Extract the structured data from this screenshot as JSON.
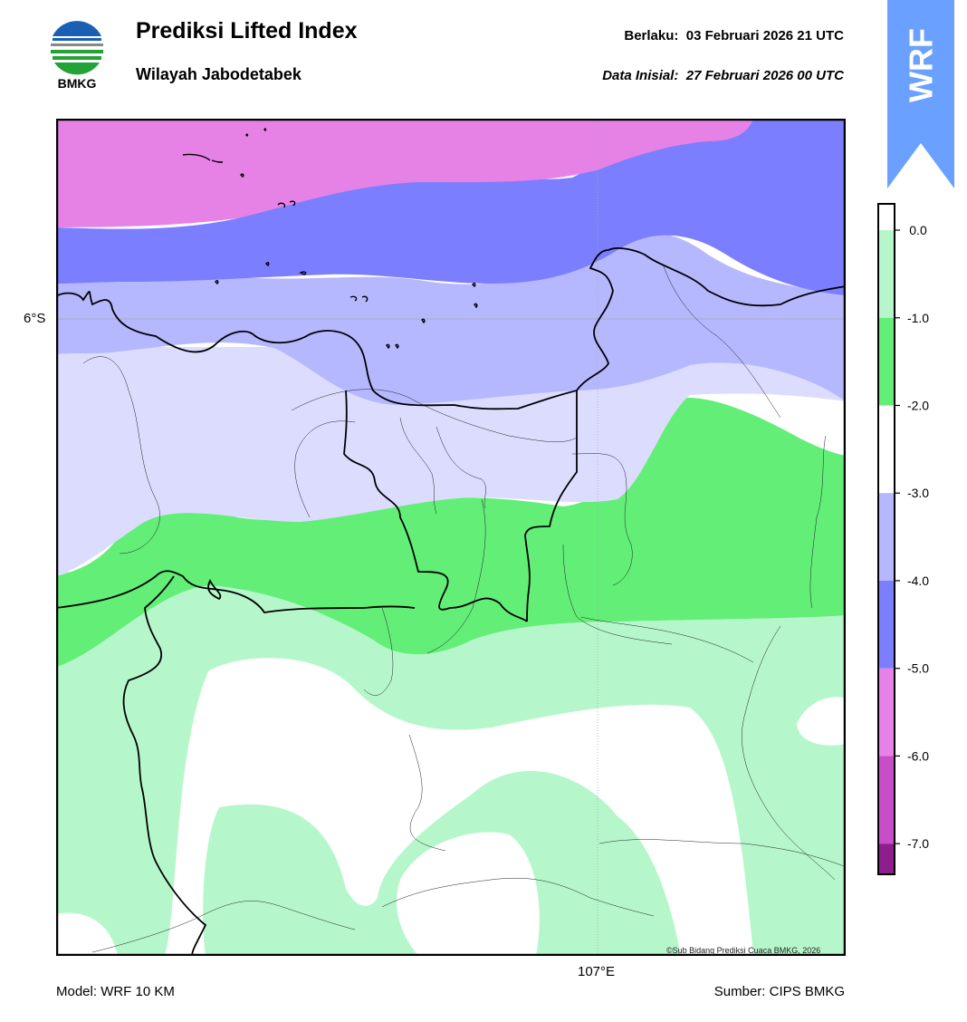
{
  "header": {
    "logo_text": "BMKG",
    "title": "Prediksi Lifted Index",
    "subtitle": "Wilayah Jabodetabek",
    "valid_label": "Berlaku:",
    "valid_value": "03 Februari 2026 21 UTC",
    "init_label": "Data Inisial:",
    "init_value": "27 Februari 2026 00 UTC",
    "model_badge": "WRF",
    "badge_color": "#6aa0ff"
  },
  "map": {
    "lat_label": "6°S",
    "lon_label": "107°E",
    "copyright": "©Sub Bidang Prediksi Cuaca BMKG, 2026"
  },
  "legend": {
    "ticks": [
      "0.0",
      "-1.0",
      "-2.0",
      "-3.0",
      "-4.0",
      "-5.0",
      "-6.0",
      "-7.0"
    ],
    "bands": [
      {
        "from": 0.3,
        "to": 0.0,
        "color": "#ffffff"
      },
      {
        "from": 0.0,
        "to": -1.0,
        "color": "#b5f7ca"
      },
      {
        "from": -1.0,
        "to": -2.0,
        "color": "#63ee78"
      },
      {
        "from": -2.0,
        "to": -3.0,
        "color": "#ffffff"
      },
      {
        "from": -3.0,
        "to": -4.0,
        "color": "#b5b8fe"
      },
      {
        "from": -4.0,
        "to": -5.0,
        "color": "#7b7efe"
      },
      {
        "from": -5.0,
        "to": -6.0,
        "color": "#e681e6"
      },
      {
        "from": -6.0,
        "to": -7.0,
        "color": "#c84ec8"
      },
      {
        "from": -7.0,
        "to": -7.35,
        "color": "#8e1e8e"
      }
    ]
  },
  "footer": {
    "model": "Model: WRF 10 KM",
    "source": "Sumber: CIPS BMKG"
  }
}
